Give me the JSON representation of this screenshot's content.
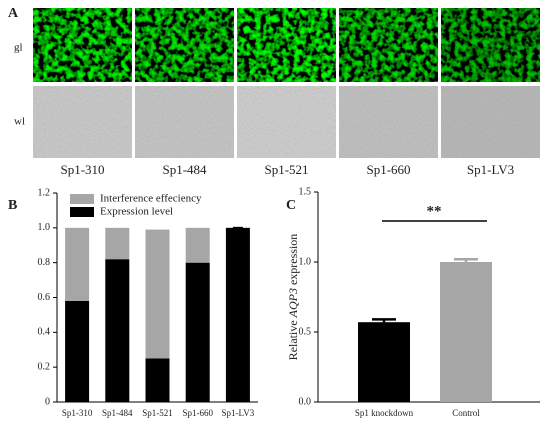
{
  "panel_labels": [
    "A",
    "B",
    "C"
  ],
  "microscopy": {
    "row_labels": [
      "gl",
      "wl"
    ],
    "column_labels": [
      "Sp1-310",
      "Sp1-484",
      "Sp1-521",
      "Sp1-660",
      "Sp1-LV3"
    ]
  },
  "chart_data": [
    {
      "type": "stacked_bar",
      "categories": [
        "Sp1-310",
        "Sp1-484",
        "Sp1-521",
        "Sp1-660",
        "Sp1-LV3"
      ],
      "series": [
        {
          "name": "Interference effeciency",
          "color": "#a6a6a6",
          "values": [
            0.42,
            0.18,
            0.74,
            0.2,
            0
          ]
        },
        {
          "name": "Expression level",
          "color": "#000000",
          "values": [
            0.58,
            0.82,
            0.25,
            0.8,
            1.0
          ],
          "errors": [
            0.11,
            0.05,
            0.02,
            0.11,
            0
          ]
        }
      ],
      "ylim": [
        0,
        1.2
      ],
      "yticks": [
        0,
        0.2,
        0.4,
        0.6,
        0.8,
        {
          "value": 1,
          "label": "1.0"
        },
        1.2
      ]
    },
    {
      "type": "bar",
      "categories": [
        "Sp1 knockdown",
        "Control"
      ],
      "values": [
        0.57,
        1.0
      ],
      "errors": [
        0.02,
        0.02
      ],
      "colors": [
        "#000000",
        "#a6a6a6"
      ],
      "ylabel": [
        "Relative",
        "AQP3",
        "expression"
      ],
      "annotation": "**",
      "ylim": [
        0,
        1.5
      ],
      "yticks": [
        {
          "value": 0,
          "label": "0.0"
        },
        0.5,
        {
          "value": 1,
          "label": "1.0"
        },
        1.5
      ]
    }
  ]
}
